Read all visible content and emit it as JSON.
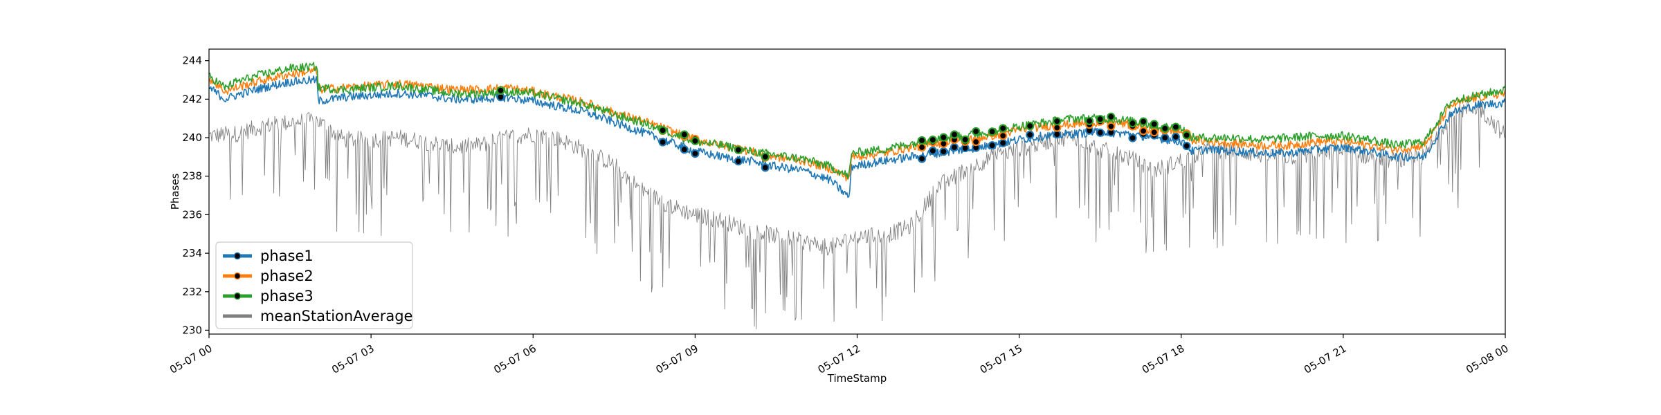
{
  "chart_data": {
    "type": "line",
    "xlabel": "TimeStamp",
    "ylabel": "Phases",
    "x_ticks": [
      "05-07 00",
      "05-07 03",
      "05-07 06",
      "05-07 09",
      "05-07 12",
      "05-07 15",
      "05-07 18",
      "05-07 21",
      "05-08 00"
    ],
    "x_range_hours": [
      0,
      24
    ],
    "ylim": [
      229.8,
      244.6
    ],
    "y_ticks": [
      230,
      232,
      234,
      236,
      238,
      240,
      242,
      244
    ],
    "grid": false,
    "legend_position": "lower-left",
    "series": [
      {
        "name": "phase1",
        "color": "#1f77b4",
        "hours": [
          0,
          0.3,
          0.5,
          1,
          1.5,
          2,
          2.02,
          2.5,
          3,
          3.5,
          4,
          4.5,
          5,
          5.5,
          6,
          6.5,
          7,
          7.5,
          8,
          8.5,
          9,
          9.5,
          10,
          10.5,
          11,
          11.5,
          11.85,
          11.9,
          12.5,
          13,
          13.5,
          14,
          14.5,
          15,
          15.5,
          16,
          16.5,
          17,
          17.5,
          18,
          18.2,
          18.5,
          19,
          19.5,
          20,
          20.5,
          21,
          21.5,
          22,
          22.5,
          23,
          23.5,
          24
        ],
        "values": [
          242.6,
          242.0,
          242.2,
          242.6,
          242.9,
          243.0,
          241.9,
          242.1,
          242.2,
          242.3,
          242.2,
          242.0,
          242.0,
          242.1,
          241.9,
          241.6,
          241.3,
          240.8,
          240.3,
          239.8,
          239.3,
          239.0,
          238.8,
          238.5,
          238.3,
          237.8,
          236.9,
          238.5,
          238.8,
          239.0,
          239.2,
          239.4,
          239.6,
          239.9,
          240.1,
          240.2,
          240.3,
          240.2,
          240.0,
          239.8,
          239.3,
          239.4,
          239.3,
          239.2,
          239.2,
          239.4,
          239.5,
          239.3,
          239.0,
          239.0,
          241.3,
          241.7,
          241.8
        ]
      },
      {
        "name": "phase2",
        "color": "#ff7f0e",
        "hours": [
          0,
          0.3,
          0.5,
          1,
          1.5,
          2,
          2.02,
          2.5,
          3,
          3.5,
          4,
          4.5,
          5,
          5.5,
          6,
          6.5,
          7,
          7.5,
          8,
          8.5,
          9,
          9.5,
          10,
          10.5,
          11,
          11.5,
          11.85,
          11.9,
          12.5,
          13,
          13.5,
          14,
          14.5,
          15,
          15.5,
          16,
          16.5,
          17,
          17.5,
          18,
          18.2,
          18.5,
          19,
          19.5,
          20,
          20.5,
          21,
          21.5,
          22,
          22.5,
          23,
          23.5,
          24
        ],
        "values": [
          243.1,
          242.4,
          242.6,
          243.0,
          243.3,
          243.5,
          242.5,
          242.6,
          242.7,
          242.8,
          242.7,
          242.5,
          242.5,
          242.6,
          242.4,
          242.1,
          241.8,
          241.3,
          240.9,
          240.4,
          239.9,
          239.6,
          239.3,
          239.0,
          238.8,
          238.4,
          237.9,
          239.0,
          239.2,
          239.5,
          239.7,
          239.9,
          240.1,
          240.4,
          240.6,
          240.7,
          240.8,
          240.7,
          240.4,
          240.3,
          239.9,
          239.8,
          239.7,
          239.6,
          239.6,
          239.8,
          239.8,
          239.6,
          239.4,
          239.6,
          241.7,
          242.1,
          242.3
        ]
      },
      {
        "name": "phase3",
        "color": "#2ca02c",
        "hours": [
          0,
          0.3,
          0.5,
          1,
          1.5,
          2,
          2.02,
          2.5,
          3,
          3.5,
          4,
          4.5,
          5,
          5.5,
          6,
          6.5,
          7,
          7.5,
          8,
          8.5,
          9,
          9.5,
          10,
          10.5,
          11,
          11.5,
          11.85,
          11.9,
          12.5,
          13,
          13.5,
          14,
          14.5,
          15,
          15.5,
          16,
          16.5,
          17,
          17.5,
          18,
          18.2,
          18.5,
          19,
          19.5,
          20,
          20.5,
          21,
          21.5,
          22,
          22.5,
          23,
          23.5,
          24
        ],
        "values": [
          243.2,
          242.6,
          242.9,
          243.3,
          243.6,
          243.7,
          242.6,
          242.5,
          242.6,
          242.7,
          242.5,
          242.3,
          242.3,
          242.4,
          242.3,
          242.0,
          241.7,
          241.2,
          240.8,
          240.3,
          239.8,
          239.6,
          239.3,
          239.1,
          238.9,
          238.5,
          238.0,
          239.2,
          239.4,
          239.7,
          239.9,
          240.1,
          240.3,
          240.6,
          240.8,
          241.0,
          241.0,
          240.9,
          240.6,
          240.5,
          240.0,
          240.0,
          240.0,
          239.9,
          240.0,
          240.1,
          240.1,
          239.9,
          239.6,
          239.8,
          241.9,
          242.2,
          242.5
        ]
      },
      {
        "name": "meanStationAverage",
        "color": "#808080",
        "hours": [
          0,
          0.5,
          1,
          1.5,
          2,
          2.5,
          3,
          3.5,
          4,
          4.5,
          5,
          5.5,
          6,
          6.5,
          7,
          7.5,
          8,
          8.5,
          9,
          9.5,
          10,
          10.5,
          11,
          11.5,
          12,
          12.5,
          13,
          13.5,
          14,
          14.5,
          15,
          15.5,
          16,
          16.5,
          17,
          17.5,
          18,
          18.5,
          19,
          19.5,
          20,
          20.5,
          21,
          21.5,
          22,
          22.5,
          23,
          23.5,
          24
        ],
        "values": [
          240.1,
          240.2,
          240.6,
          240.8,
          240.9,
          239.9,
          239.9,
          240.0,
          239.8,
          239.5,
          239.6,
          240.0,
          240.2,
          239.9,
          239.3,
          238.6,
          237.3,
          236.5,
          236.0,
          235.7,
          235.2,
          234.9,
          234.6,
          234.3,
          234.9,
          234.9,
          235.4,
          237.5,
          238.3,
          239.0,
          239.4,
          239.8,
          240.1,
          239.4,
          239.0,
          238.3,
          238.8,
          239.4,
          239.3,
          239.1,
          239.0,
          239.2,
          239.3,
          239.0,
          238.8,
          239.0,
          241.3,
          241.6,
          240.1
        ]
      }
    ],
    "anomaly_hours": [
      5.4,
      8.4,
      8.8,
      9.0,
      9.8,
      10.3,
      13.2,
      13.4,
      13.6,
      13.8,
      14.0,
      14.2,
      14.5,
      14.7,
      15.2,
      15.7,
      16.3,
      16.5,
      16.7,
      17.1,
      17.3,
      17.5,
      17.7,
      17.9,
      18.1
    ]
  }
}
